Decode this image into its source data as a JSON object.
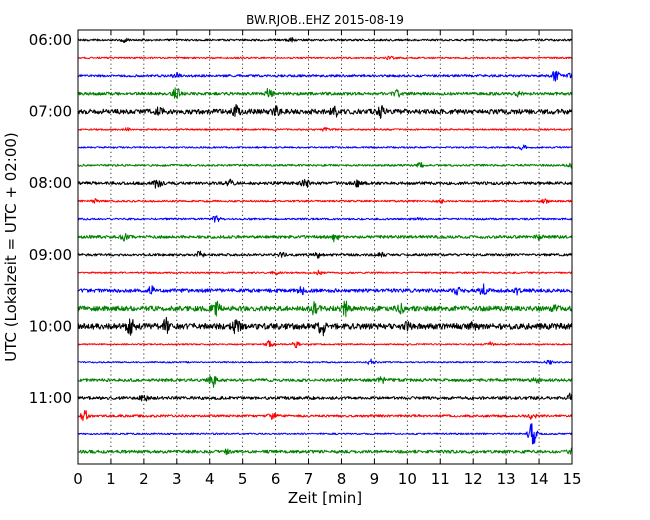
{
  "chart_data": {
    "type": "line",
    "title": "BW.RJOB..EHZ 2015-08-19",
    "xlabel": "Zeit  [min]",
    "ylabel": "UTC (Lokalzeit = UTC + 02:00)",
    "xlim": [
      0,
      15
    ],
    "x_ticks": [
      0,
      1,
      2,
      3,
      4,
      5,
      6,
      7,
      8,
      9,
      10,
      11,
      12,
      13,
      14,
      15
    ],
    "y_ticks": [
      {
        "label": "06:00",
        "row": 0
      },
      {
        "label": "07:00",
        "row": 4
      },
      {
        "label": "08:00",
        "row": 8
      },
      {
        "label": "09:00",
        "row": 12
      },
      {
        "label": "10:00",
        "row": 16
      },
      {
        "label": "11:00",
        "row": 20
      }
    ],
    "grid": "vertical-dotted",
    "colors": [
      "#000000",
      "#ff0000",
      "#0000ff",
      "#008000"
    ],
    "traces": [
      {
        "start": "06:00",
        "base": 1.0,
        "events": [
          [
            1.4,
            2.0
          ],
          [
            6.5,
            1.5
          ]
        ]
      },
      {
        "start": "06:15",
        "base": 0.8,
        "events": [
          [
            9.5,
            2.0
          ]
        ]
      },
      {
        "start": "06:30",
        "base": 1.2,
        "events": [
          [
            3.0,
            3.0
          ],
          [
            14.5,
            5.0
          ],
          [
            15.0,
            3.0
          ]
        ]
      },
      {
        "start": "06:45",
        "base": 1.5,
        "events": [
          [
            3.0,
            6.0
          ],
          [
            5.8,
            5.0
          ],
          [
            9.7,
            3.0
          ],
          [
            13.4,
            3.0
          ]
        ]
      },
      {
        "start": "07:00",
        "base": 2.5,
        "events": [
          [
            2.5,
            4.0
          ],
          [
            4.8,
            5.0
          ],
          [
            6.0,
            4.0
          ],
          [
            7.8,
            5.0
          ],
          [
            9.2,
            5.0
          ]
        ]
      },
      {
        "start": "07:15",
        "base": 0.8,
        "events": [
          [
            1.5,
            1.5
          ],
          [
            7.5,
            1.5
          ]
        ]
      },
      {
        "start": "07:30",
        "base": 0.8,
        "events": [
          [
            13.5,
            2.0
          ]
        ]
      },
      {
        "start": "07:45",
        "base": 1.0,
        "events": [
          [
            10.4,
            2.0
          ],
          [
            15.0,
            3.0
          ]
        ]
      },
      {
        "start": "08:00",
        "base": 1.5,
        "events": [
          [
            2.4,
            6.0
          ],
          [
            4.6,
            3.0
          ],
          [
            6.9,
            5.0
          ],
          [
            8.5,
            3.0
          ]
        ]
      },
      {
        "start": "08:15",
        "base": 0.9,
        "events": [
          [
            0.5,
            2.0
          ],
          [
            11.0,
            1.5
          ],
          [
            14.2,
            2.0
          ]
        ]
      },
      {
        "start": "08:30",
        "base": 0.9,
        "events": [
          [
            4.2,
            3.0
          ],
          [
            10.3,
            1.5
          ]
        ]
      },
      {
        "start": "08:45",
        "base": 1.5,
        "events": [
          [
            1.4,
            3.0
          ],
          [
            7.8,
            4.0
          ],
          [
            14.0,
            2.0
          ]
        ]
      },
      {
        "start": "09:00",
        "base": 1.2,
        "events": [
          [
            3.7,
            3.0
          ],
          [
            6.2,
            2.0
          ],
          [
            7.3,
            2.5
          ],
          [
            9.2,
            2.0
          ]
        ]
      },
      {
        "start": "09:15",
        "base": 0.8,
        "events": [
          [
            6.0,
            1.5
          ],
          [
            7.3,
            2.0
          ]
        ]
      },
      {
        "start": "09:30",
        "base": 1.8,
        "events": [
          [
            2.2,
            4.0
          ],
          [
            6.8,
            3.0
          ],
          [
            11.5,
            3.0
          ],
          [
            12.3,
            5.0
          ],
          [
            13.3,
            3.0
          ]
        ]
      },
      {
        "start": "09:45",
        "base": 2.5,
        "events": [
          [
            4.2,
            6.0
          ],
          [
            7.2,
            9.0
          ],
          [
            8.1,
            8.0
          ],
          [
            9.8,
            4.0
          ],
          [
            14.5,
            3.0
          ]
        ]
      },
      {
        "start": "10:00",
        "base": 3.0,
        "events": [
          [
            1.6,
            7.0
          ],
          [
            2.7,
            7.0
          ],
          [
            4.8,
            6.0
          ],
          [
            7.4,
            8.0
          ],
          [
            10.0,
            3.0
          ],
          [
            12.0,
            3.0
          ]
        ]
      },
      {
        "start": "10:15",
        "base": 0.7,
        "events": [
          [
            5.8,
            3.0
          ],
          [
            6.6,
            3.0
          ],
          [
            12.5,
            2.0
          ]
        ]
      },
      {
        "start": "10:30",
        "base": 0.7,
        "events": [
          [
            8.9,
            2.5
          ],
          [
            14.3,
            2.0
          ]
        ]
      },
      {
        "start": "10:45",
        "base": 1.5,
        "events": [
          [
            4.1,
            6.0
          ],
          [
            9.2,
            5.0
          ],
          [
            13.9,
            3.0
          ]
        ]
      },
      {
        "start": "11:00",
        "base": 1.5,
        "events": [
          [
            2.0,
            3.0
          ],
          [
            15.0,
            5.0
          ]
        ]
      },
      {
        "start": "11:15",
        "base": 1.2,
        "events": [
          [
            0.2,
            5.0
          ],
          [
            5.9,
            3.0
          ],
          [
            13.8,
            3.0
          ]
        ]
      },
      {
        "start": "11:30",
        "base": 0.8,
        "events": [
          [
            13.8,
            14.0
          ]
        ]
      },
      {
        "start": "11:45",
        "base": 1.5,
        "events": [
          [
            4.5,
            2.0
          ],
          [
            15.0,
            4.0
          ]
        ]
      }
    ]
  }
}
